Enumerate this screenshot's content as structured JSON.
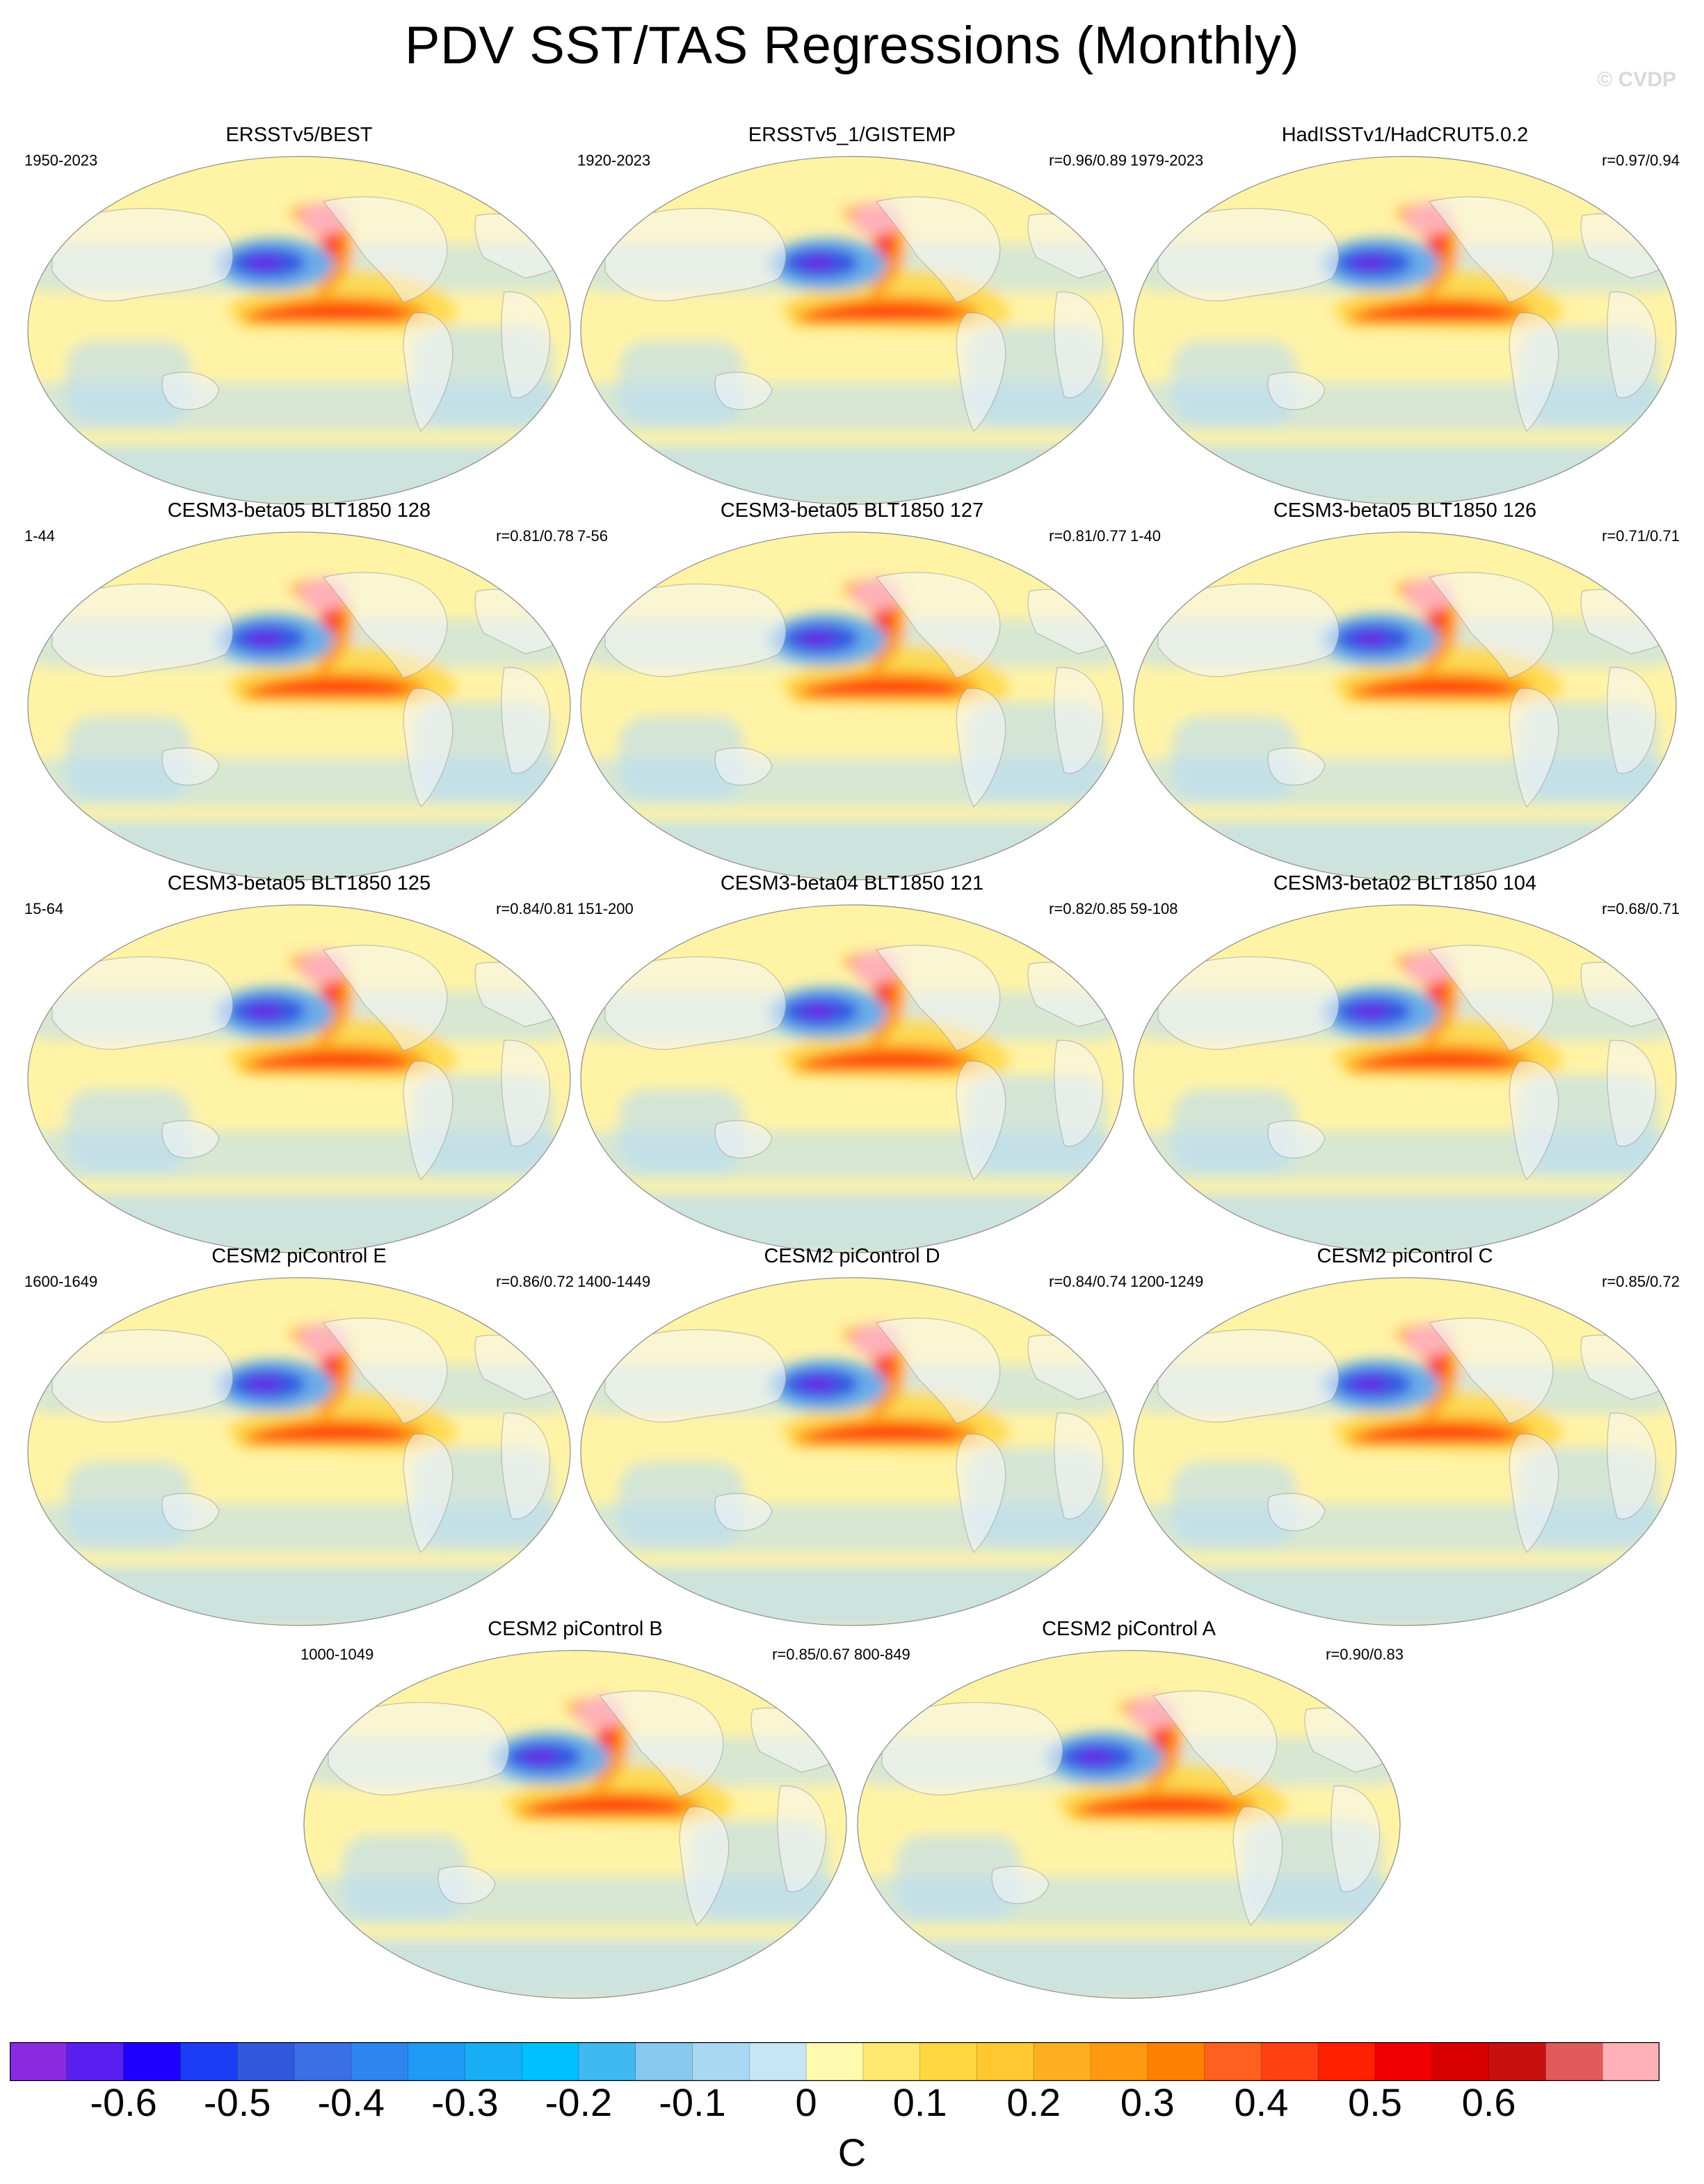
{
  "title": "PDV SST/TAS Regressions (Monthly)",
  "credit": "© CVDP",
  "panels": [
    {
      "title": "ERSSTv5/BEST",
      "years": "1950-2023",
      "corr": ""
    },
    {
      "title": "ERSSTv5_1/GISTEMP",
      "years": "1920-2023",
      "corr": "r=0.96/0.89"
    },
    {
      "title": "HadISSTv1/HadCRUT5.0.2",
      "years": "1979-2023",
      "corr": "r=0.97/0.94"
    },
    {
      "title": "CESM3-beta05 BLT1850 128",
      "years": "1-44",
      "corr": "r=0.81/0.78"
    },
    {
      "title": "CESM3-beta05 BLT1850 127",
      "years": "7-56",
      "corr": "r=0.81/0.77"
    },
    {
      "title": "CESM3-beta05 BLT1850 126",
      "years": "1-40",
      "corr": "r=0.71/0.71"
    },
    {
      "title": "CESM3-beta05 BLT1850 125",
      "years": "15-64",
      "corr": "r=0.84/0.81"
    },
    {
      "title": "CESM3-beta04 BLT1850 121",
      "years": "151-200",
      "corr": "r=0.82/0.85"
    },
    {
      "title": "CESM3-beta02 BLT1850 104",
      "years": "59-108",
      "corr": "r=0.68/0.71"
    },
    {
      "title": "CESM2 piControl E",
      "years": "1600-1649",
      "corr": "r=0.86/0.72"
    },
    {
      "title": "CESM2 piControl D",
      "years": "1400-1449",
      "corr": "r=0.84/0.74"
    },
    {
      "title": "CESM2 piControl C",
      "years": "1200-1249",
      "corr": "r=0.85/0.72"
    },
    {
      "title": "CESM2 piControl B",
      "years": "1000-1049",
      "corr": "r=0.85/0.67"
    },
    {
      "title": "CESM2 piControl A",
      "years": "800-849",
      "corr": "r=0.90/0.83"
    }
  ],
  "colorbar": {
    "unit": "C",
    "labels": [
      "-0.6",
      "-0.5",
      "-0.4",
      "-0.3",
      "-0.2",
      "-0.1",
      "0",
      "0.1",
      "0.2",
      "0.3",
      "0.4",
      "0.5",
      "0.6"
    ],
    "colors": [
      "#8a2be2",
      "#5a1ef0",
      "#1e00ff",
      "#1b3ef5",
      "#3258e0",
      "#3a6fe6",
      "#2f85f0",
      "#1f9af5",
      "#18aef5",
      "#00c0ff",
      "#40b8f0",
      "#86c8ee",
      "#a8d8f2",
      "#c6e5f5",
      "#fffab0",
      "#ffe870",
      "#ffd840",
      "#ffc830",
      "#ffb020",
      "#ff9a10",
      "#ff8000",
      "#ff6020",
      "#ff4010",
      "#ff2000",
      "#f00000",
      "#d80000",
      "#c81010",
      "#e05a5a",
      "#ffb0b8"
    ]
  },
  "map_colors": {
    "ocean_bg": "#fff3a6",
    "land": "#f6f6f6",
    "coast": "#9a9a9a",
    "cool_light": "#b8dcf5",
    "cool_mid": "#6aaee8",
    "cool_deep": "#3258e0",
    "cool_core": "#6a1ee8",
    "warm_light": "#ffd84a",
    "warm_mid": "#ff9a10",
    "warm_deep": "#ff3010",
    "warm_core": "#d00000",
    "warm_peak": "#ffb0b8"
  }
}
